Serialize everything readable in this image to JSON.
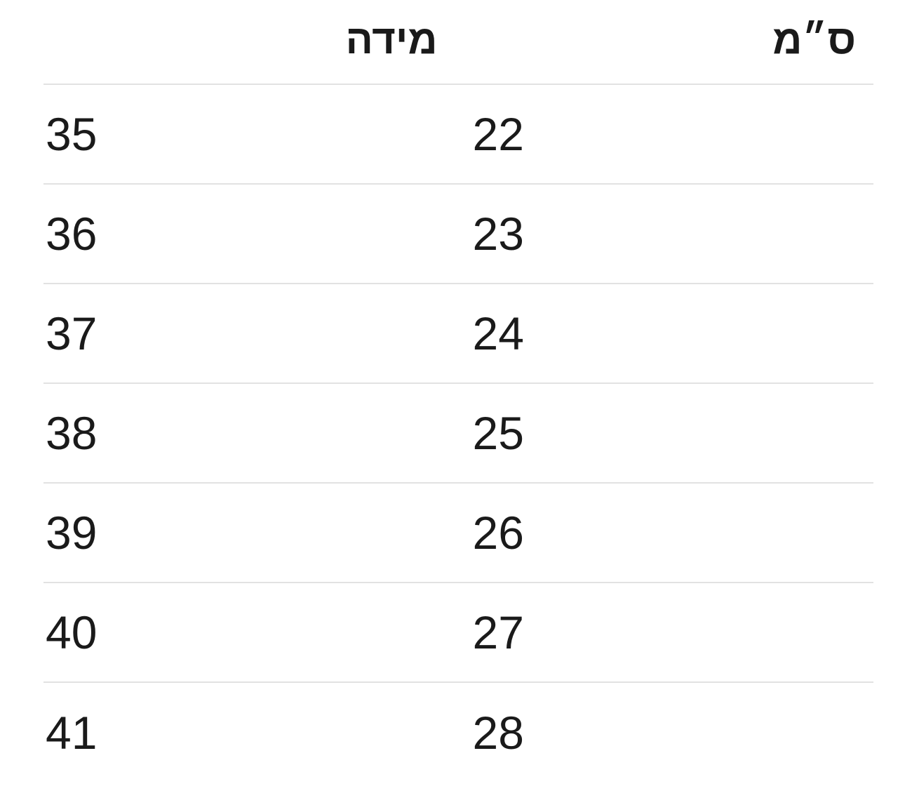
{
  "page": {
    "background_color": "#ffffff",
    "text_color": "#1a1a1a",
    "divider_color": "#e2e2e2"
  },
  "size_chart": {
    "direction": "rtl",
    "columns": {
      "size": {
        "label": "מידה"
      },
      "cm": {
        "label": "ס״מ"
      }
    },
    "rows": [
      {
        "size": "35",
        "cm": "22"
      },
      {
        "size": "36",
        "cm": "23"
      },
      {
        "size": "37",
        "cm": "24"
      },
      {
        "size": "38",
        "cm": "25"
      },
      {
        "size": "39",
        "cm": "26"
      },
      {
        "size": "40",
        "cm": "27"
      },
      {
        "size": "41",
        "cm": "28"
      }
    ]
  },
  "chart_data": {
    "type": "table",
    "title": "",
    "columns": [
      "מידה",
      "ס״מ"
    ],
    "rows": [
      [
        "35",
        "22"
      ],
      [
        "36",
        "23"
      ],
      [
        "37",
        "24"
      ],
      [
        "38",
        "25"
      ],
      [
        "39",
        "26"
      ],
      [
        "40",
        "27"
      ],
      [
        "41",
        "28"
      ]
    ]
  }
}
